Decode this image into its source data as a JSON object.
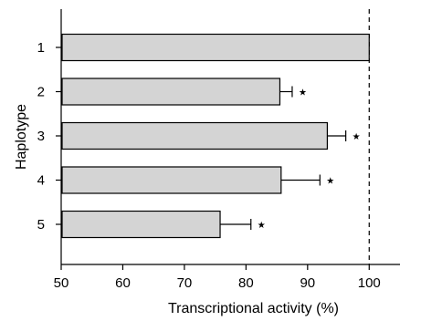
{
  "chart_data": {
    "type": "bar",
    "orientation": "horizontal",
    "categories": [
      "1",
      "2",
      "3",
      "4",
      "5"
    ],
    "values": [
      100,
      85.5,
      93.2,
      85.7,
      75.8
    ],
    "errors": [
      0,
      2.0,
      3.0,
      6.3,
      5.0
    ],
    "significance": [
      "",
      "★",
      "★",
      "★",
      "★"
    ],
    "xlabel": "Transcriptional activity (%)",
    "ylabel": "Haplotype",
    "xlim": [
      50,
      105
    ],
    "xticks": [
      "50",
      "60",
      "70",
      "80",
      "90",
      "100"
    ],
    "reference_line": 100,
    "bar_color": "#d4d4d4",
    "grid": false
  }
}
